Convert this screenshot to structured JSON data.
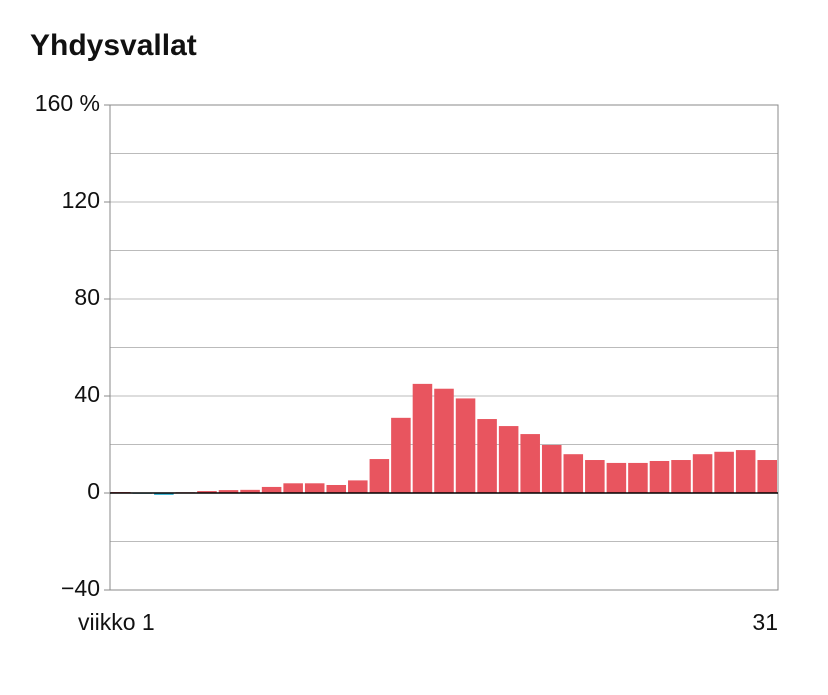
{
  "chart_data": {
    "type": "bar",
    "title": "Yhdysvallat",
    "categories": [
      "viikko 1",
      null,
      null,
      null,
      null,
      null,
      null,
      null,
      null,
      null,
      null,
      null,
      null,
      null,
      null,
      null,
      null,
      null,
      null,
      null,
      null,
      null,
      null,
      null,
      null,
      null,
      null,
      null,
      null,
      null,
      "31"
    ],
    "values": [
      0.4,
      -0.3,
      -0.8,
      0.3,
      0.8,
      1.2,
      1.3,
      2.5,
      4,
      4,
      3.3,
      5.2,
      14,
      31,
      45,
      43,
      39,
      30.5,
      27.6,
      24.3,
      19.8,
      16,
      13.6,
      12.4,
      12.4,
      13.2,
      13.6,
      16,
      17,
      17.7,
      13.6
    ],
    "color": "#e8555f",
    "negative_color": "#3bb6d6",
    "ylim": [
      -40,
      160
    ],
    "yticks": [
      {
        "value": -40,
        "label": "−40"
      },
      0,
      40,
      80,
      120,
      {
        "value": 160,
        "label": "160 %"
      }
    ],
    "minor_yticks": [
      -20,
      20,
      60,
      100,
      140
    ],
    "grid": true
  }
}
